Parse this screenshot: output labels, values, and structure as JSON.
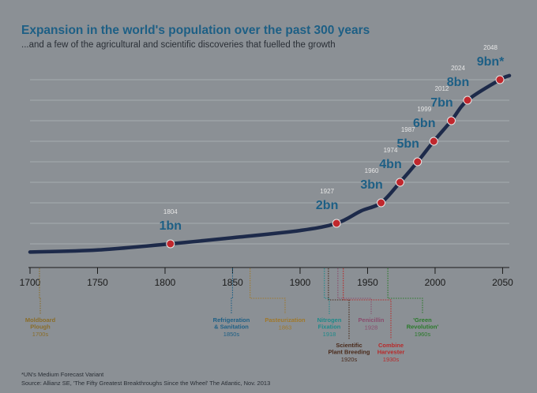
{
  "chart_data": {
    "type": "line",
    "title": "Expansion in the world's population over the past 300 years",
    "subtitle": "...and a few of the agricultural and scientific discoveries that fuelled the growth",
    "xlabel": "",
    "ylabel": "",
    "xlim": [
      1700,
      2055
    ],
    "ylim": [
      0,
      10
    ],
    "x_ticks": [
      "1700",
      "1750",
      "1800",
      "1850",
      "1900",
      "1950",
      "2000",
      "2050"
    ],
    "grid": "horizontal",
    "colors": {
      "background": "#8b9095",
      "curve": "#1d2a4a",
      "marker": "#c0272d",
      "title": "#1d5f85",
      "label": "#1d5f85",
      "year": "#e6e6e6",
      "gridline": "#c2c5c8"
    },
    "curve": {
      "x": [
        1700,
        1750,
        1804,
        1850,
        1900,
        1927,
        1945,
        1960,
        1974,
        1987,
        1999,
        2012,
        2024,
        2048,
        2055
      ],
      "y": [
        0.6,
        0.7,
        1.0,
        1.3,
        1.65,
        2.0,
        2.6,
        3.0,
        4.0,
        5.0,
        6.0,
        7.0,
        8.0,
        9.0,
        9.2
      ]
    },
    "milestones": [
      {
        "year": "1804",
        "label": "1bn",
        "x": 1804,
        "y": 1
      },
      {
        "year": "1927",
        "label": "2bn",
        "x": 1927,
        "y": 2
      },
      {
        "year": "1960",
        "label": "3bn",
        "x": 1960,
        "y": 3
      },
      {
        "year": "1974",
        "label": "4bn",
        "x": 1974,
        "y": 4
      },
      {
        "year": "1987",
        "label": "5bn",
        "x": 1987,
        "y": 5
      },
      {
        "year": "1999",
        "label": "6bn",
        "x": 1999,
        "y": 6
      },
      {
        "year": "2012",
        "label": "7bn",
        "x": 2012,
        "y": 7
      },
      {
        "year": "2024",
        "label": "8bn",
        "x": 2024,
        "y": 8
      },
      {
        "year": "2048",
        "label": "9bn*",
        "x": 2048,
        "y": 9
      }
    ],
    "discoveries": [
      {
        "name": "Moldboard\nPlough",
        "date": "1700s",
        "x": 1707,
        "color": "#8a6d2a"
      },
      {
        "name": "Refrigeration\n& Sanitation",
        "date": "1850s",
        "x": 1850,
        "color": "#1d5f85"
      },
      {
        "name": "Pasteurization",
        "date": "1863",
        "x": 1863,
        "color": "#a0782a"
      },
      {
        "name": "Nitrogen\nFixation",
        "date": "1918",
        "x": 1918,
        "color": "#1e8a8a"
      },
      {
        "name": "Penicillin",
        "date": "1928",
        "x": 1928,
        "color": "#8a4d6d"
      },
      {
        "name": "Scientific\nPlant Breeding",
        "date": "1920s",
        "x": 1921,
        "color": "#4a2a1a"
      },
      {
        "name": "Combine\nHarvester",
        "date": "1930s",
        "x": 1932,
        "color": "#b82a2a"
      },
      {
        "name": "'Green\nRevolution'",
        "date": "1960s",
        "x": 1965,
        "color": "#2a7a2a"
      }
    ]
  },
  "footnote": "*UN's Medium Forecast Variant",
  "source": "Source: Allianz SE, 'The Fifty Greatest Breakthroughs Since the Wheel' The Atlantic, Nov. 2013"
}
